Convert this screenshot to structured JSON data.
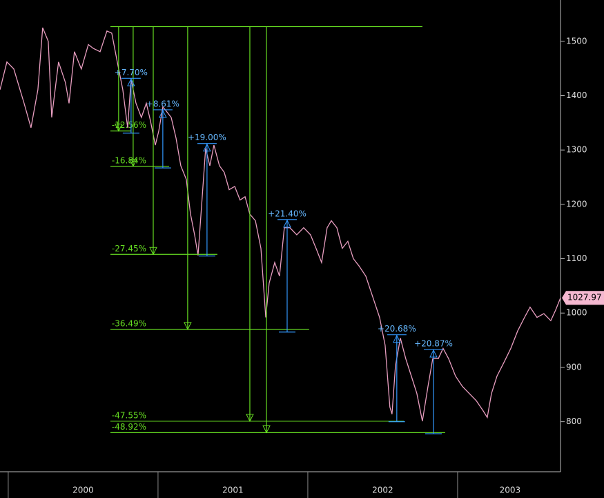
{
  "chart_data": {
    "type": "line",
    "background": "#000000",
    "series": [
      {
        "color": "#e89ec0",
        "x": [
          1999.945,
          1999.991,
          2000.037,
          2000.106,
          2000.152,
          2000.198,
          2000.23,
          2000.267,
          2000.29,
          2000.336,
          2000.382,
          2000.406,
          2000.442,
          2000.488,
          2000.535,
          2000.567,
          2000.613,
          2000.659,
          2000.691,
          2000.728,
          2000.765,
          2000.797,
          2000.82,
          2000.853,
          2000.889,
          2000.922,
          2000.949,
          2000.982,
          2001.005,
          2001.032,
          2001.051,
          2001.088,
          2001.12,
          2001.152,
          2001.189,
          2001.217,
          2001.244,
          2001.267,
          2001.29,
          2001.318,
          2001.346,
          2001.373,
          2001.41,
          2001.442,
          2001.475,
          2001.512,
          2001.548,
          2001.581,
          2001.613,
          2001.65,
          2001.687,
          2001.719,
          2001.742,
          2001.779,
          2001.811,
          2001.843,
          2001.88,
          2001.926,
          2001.972,
          2002.018,
          2002.055,
          2002.092,
          2002.129,
          2002.157,
          2002.194,
          2002.23,
          2002.267,
          2002.304,
          2002.341,
          2002.387,
          2002.433,
          2002.479,
          2002.516,
          2002.548,
          2002.562,
          2002.585,
          2002.618,
          2002.654,
          2002.691,
          2002.728,
          2002.765,
          2002.802,
          2002.834,
          2002.871,
          2002.903,
          2002.94,
          2002.986,
          2003.032,
          2003.078,
          2003.124,
          2003.171,
          2003.198,
          2003.226,
          2003.263,
          2003.309,
          2003.355,
          2003.401,
          2003.447,
          2003.484,
          2003.53,
          2003.576,
          2003.622,
          2003.654,
          2003.687
        ],
        "values": [
          1411,
          1462,
          1449,
          1386,
          1341,
          1411,
          1525,
          1500,
          1360,
          1462,
          1424,
          1386,
          1481,
          1449,
          1494,
          1487,
          1481,
          1519,
          1515,
          1462,
          1411,
          1341,
          1430,
          1386,
          1360,
          1386,
          1354,
          1309,
          1335,
          1379,
          1373,
          1360,
          1322,
          1271,
          1246,
          1182,
          1144,
          1106,
          1195,
          1303,
          1271,
          1309,
          1271,
          1259,
          1227,
          1233,
          1208,
          1214,
          1182,
          1170,
          1119,
          992,
          1055,
          1093,
          1068,
          1157,
          1157,
          1144,
          1157,
          1144,
          1119,
          1093,
          1157,
          1170,
          1157,
          1119,
          1132,
          1100,
          1087,
          1068,
          1030,
          992,
          941,
          827,
          814,
          903,
          954,
          916,
          884,
          852,
          801,
          865,
          916,
          916,
          935,
          916,
          884,
          865,
          852,
          839,
          820,
          808,
          852,
          884,
          909,
          935,
          967,
          992,
          1011,
          992,
          999,
          986,
          1005,
          1028
        ]
      }
    ],
    "last_price": 1027.97,
    "xlim": [
      1999.945,
      2003.687
    ],
    "xticks": [
      {
        "value": 2000.5,
        "label": "2000"
      },
      {
        "value": 2001.5,
        "label": "2001"
      },
      {
        "value": 2002.5,
        "label": "2002"
      },
      {
        "value": 2003.35,
        "label": "2003"
      }
    ],
    "year_boundaries": [
      2000,
      2001,
      2002,
      2003
    ],
    "ylim": [
      708,
      1576
    ],
    "yticks": [
      800,
      900,
      1000,
      1100,
      1200,
      1300,
      1400,
      1500
    ],
    "drawdowns": {
      "color": "#66dd22",
      "peak": 1527,
      "x_peak": 2000.682,
      "x_peak_end": 2002.765,
      "x": [
        2000.737,
        2000.834,
        2000.968,
        2001.198,
        2001.613,
        2001.724
      ],
      "x_end": [
        2000.82,
        2001.074,
        2001.396,
        2002.009,
        2002.641,
        2002.917
      ],
      "levels": [
        1335,
        1270,
        1108,
        970,
        801,
        780
      ],
      "values": [
        -12.56,
        -16.84,
        -27.45,
        -36.49,
        -47.55,
        -48.92
      ],
      "value_labels": [
        "-12.56%",
        "-16.84%",
        "-27.45%",
        "-36.49%",
        "-47.55%",
        "-48.92%"
      ]
    },
    "rallies": {
      "color": "#3399ff",
      "label_color": "#66b8ff",
      "x": [
        2000.82,
        2001.032,
        2001.327,
        2001.862,
        2002.594,
        2002.839
      ],
      "lows": [
        1331,
        1267,
        1105,
        965,
        800,
        778
      ],
      "highs": [
        1432,
        1374,
        1312,
        1172,
        960,
        933
      ],
      "values": [
        7.7,
        8.61,
        19.0,
        21.4,
        20.68,
        20.87
      ],
      "value_labels": [
        "+7.70%",
        "+8.61%",
        "+19.00%",
        "+21.40%",
        "+20.68%",
        "+20.87%"
      ]
    }
  }
}
